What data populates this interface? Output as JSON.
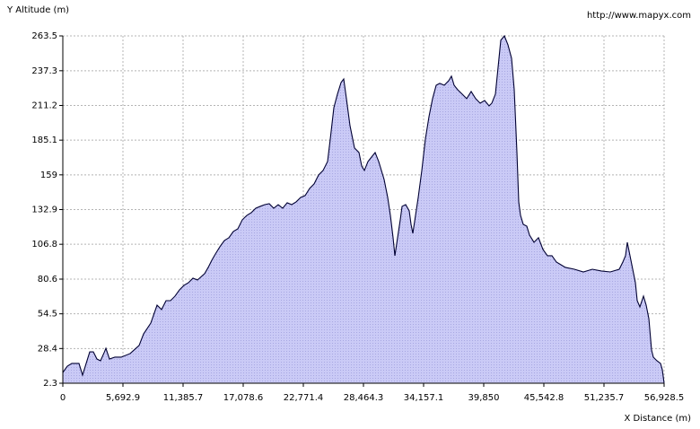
{
  "chart_data": {
    "type": "area",
    "y_label": "Y Altitude (m)",
    "x_label": "X Distance (m)",
    "source": "http://www.mapyx.com",
    "color": "#000033",
    "fill": "#c8c8f4",
    "grid": true,
    "xlim": [
      0,
      56928.5
    ],
    "ylim": [
      2.3,
      263.5
    ],
    "xticks": [
      0,
      {
        "value": 5692.9,
        "label": "5,692.9"
      },
      {
        "value": 11385.7,
        "label": "11,385.7"
      },
      {
        "value": 17078.6,
        "label": "17,078.6"
      },
      {
        "value": 22771.4,
        "label": "22,771.4"
      },
      {
        "value": 28464.3,
        "label": "28,464.3"
      },
      {
        "value": 34157.1,
        "label": "34,157.1"
      },
      {
        "value": 39850,
        "label": "39,850"
      },
      {
        "value": 45542.8,
        "label": "45,542.8"
      },
      {
        "value": 51235.7,
        "label": "51,235.7"
      },
      {
        "value": 56928.5,
        "label": "56,928.5"
      }
    ],
    "yticks": [
      2.3,
      28.4,
      54.5,
      80.6,
      106.8,
      132.9,
      159,
      185.1,
      211.2,
      237.3,
      263.5
    ],
    "x": [
      0,
      425,
      850,
      1529,
      1869,
      2209,
      2549,
      2889,
      3229,
      3569,
      3909,
      4079,
      4418,
      4928,
      5523,
      6373,
      7222,
      7647,
      8327,
      8922,
      9347,
      9772,
      10196,
      10621,
      11046,
      11471,
      11896,
      12321,
      12746,
      13425,
      13765,
      14105,
      14445,
      14870,
      15295,
      15719,
      16144,
      16569,
      16994,
      17419,
      17844,
      18269,
      18693,
      19118,
      19543,
      19968,
      20393,
      20818,
      21243,
      21667,
      22092,
      22517,
      22942,
      23367,
      23792,
      24216,
      24641,
      25066,
      25321,
      25661,
      26001,
      26341,
      26596,
      26851,
      27190,
      27615,
      28040,
      28295,
      28550,
      28890,
      29230,
      29570,
      29909,
      30419,
      30759,
      31014,
      31269,
      31439,
      31694,
      31949,
      32119,
      32459,
      32798,
      32968,
      33138,
      33393,
      33648,
      33988,
      34328,
      34668,
      35008,
      35348,
      35687,
      36112,
      36537,
      36792,
      37047,
      37387,
      37812,
      38237,
      38661,
      39086,
      39511,
      39936,
      40361,
      40616,
      40956,
      41210,
      41465,
      41805,
      42145,
      42485,
      42740,
      42995,
      43165,
      43335,
      43590,
      43929,
      44184,
      44609,
      45034,
      45459,
      45884,
      46309,
      46734,
      47158,
      47583,
      48433,
      49283,
      50132,
      50982,
      51832,
      52681,
      53021,
      53276,
      53446,
      53616,
      53956,
      54211,
      54381,
      54636,
      54976,
      55230,
      55485,
      55740,
      55910,
      56250,
      56590,
      56760,
      56928.5
    ],
    "values": [
      10.4,
      15.1,
      17.2,
      17.2,
      8.4,
      17.2,
      25.9,
      25.9,
      20.5,
      19.2,
      25.3,
      28.6,
      20.5,
      21.9,
      21.9,
      24.6,
      30.7,
      39.4,
      47.5,
      61.0,
      57.7,
      64.4,
      64.4,
      67.8,
      72.5,
      75.9,
      77.9,
      81.3,
      79.9,
      84.7,
      89.4,
      94.8,
      99.5,
      104.9,
      109.6,
      111.7,
      116.4,
      118.4,
      125.2,
      128.5,
      130.6,
      133.9,
      135.3,
      136.6,
      137.3,
      133.9,
      136.6,
      133.9,
      138.0,
      136.6,
      138.7,
      142.0,
      143.4,
      148.8,
      152.2,
      158.9,
      162.3,
      169.0,
      185.9,
      209.5,
      219.7,
      228.4,
      231.1,
      216.3,
      196.0,
      179.2,
      175.8,
      165.7,
      162.3,
      169.0,
      172.4,
      175.8,
      169.0,
      155.5,
      142.0,
      128.5,
      111.7,
      98.2,
      111.7,
      125.2,
      135.3,
      136.6,
      131.9,
      121.8,
      115.0,
      128.5,
      142.0,
      162.3,
      185.9,
      202.8,
      216.3,
      226.4,
      227.8,
      226.4,
      229.8,
      233.2,
      226.4,
      223.0,
      219.7,
      216.3,
      221.7,
      216.3,
      212.9,
      214.9,
      210.9,
      212.9,
      219.7,
      239.9,
      260.2,
      263.5,
      256.8,
      246.7,
      223.0,
      175.8,
      138.7,
      128.5,
      121.8,
      120.4,
      113.7,
      108.3,
      111.7,
      102.9,
      98.2,
      98.2,
      93.4,
      91.4,
      89.4,
      88.0,
      86.0,
      88.0,
      86.7,
      86.0,
      88.0,
      93.4,
      98.2,
      108.3,
      101.5,
      88.0,
      77.9,
      64.4,
      59.7,
      67.8,
      61.0,
      50.9,
      27.3,
      21.9,
      19.2,
      17.2,
      12.4,
      2.3
    ]
  }
}
